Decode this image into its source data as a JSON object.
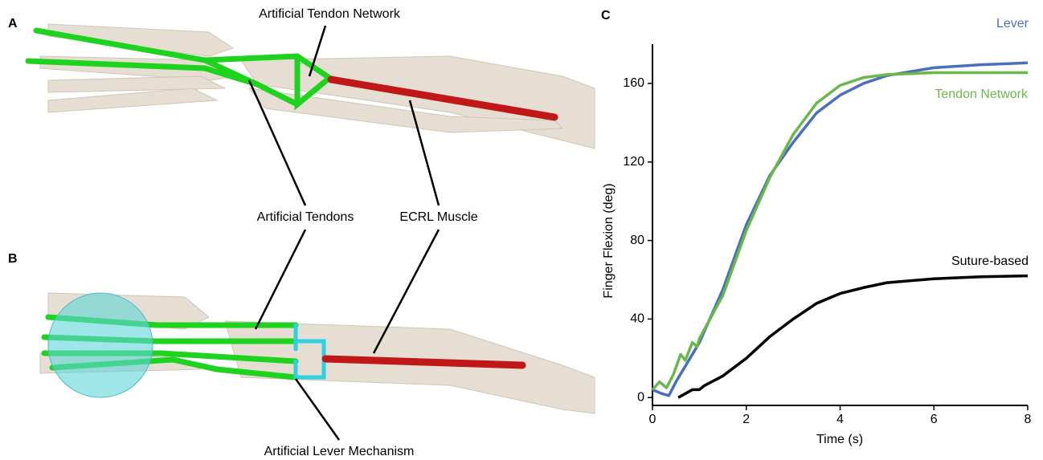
{
  "figure": {
    "panel_labels": [
      "A",
      "B",
      "C"
    ],
    "annotations": [
      "Artificial Tendon Network",
      "Artificial Tendons",
      "ECRL Muscle",
      "Artificial Lever Mechanism"
    ]
  },
  "chart_data": {
    "type": "line",
    "xlabel": "Time (s)",
    "ylabel": "Finger Flexion (deg)",
    "xlim": [
      0,
      8
    ],
    "xticks": [
      0,
      2,
      4,
      6,
      8
    ],
    "ylim": [
      -4,
      180
    ],
    "yticks": [
      0,
      40,
      80,
      120,
      160
    ],
    "series": [
      {
        "name": "Lever",
        "color": "#4a6fbd",
        "x": [
          0,
          0.2,
          0.35,
          0.5,
          0.8,
          1,
          1.5,
          2,
          2.5,
          3,
          3.5,
          4,
          4.5,
          5,
          6,
          7,
          8
        ],
        "values": [
          4,
          2,
          1,
          8,
          20,
          28,
          55,
          88,
          113,
          130,
          145,
          154,
          160,
          164,
          168,
          169.5,
          170.5
        ]
      },
      {
        "name": "Tendon Network",
        "color": "#6ab84a",
        "x": [
          0,
          0.15,
          0.3,
          0.45,
          0.6,
          0.7,
          0.85,
          0.95,
          1,
          1.5,
          2,
          2.5,
          3,
          3.5,
          4,
          4.5,
          5,
          6,
          8
        ],
        "values": [
          4,
          8,
          5,
          12,
          22,
          19,
          28,
          26,
          30,
          52,
          85,
          112,
          134,
          150,
          159,
          163,
          164.5,
          165.5,
          165.5
        ]
      },
      {
        "name": "Suture-based",
        "color": "#000000",
        "x": [
          0.55,
          0.7,
          0.85,
          1,
          1.1,
          1.5,
          2,
          2.5,
          3,
          3.5,
          4,
          4.5,
          5,
          6,
          7,
          8
        ],
        "values": [
          0,
          2,
          4,
          4,
          6,
          11,
          20,
          31,
          40,
          48,
          53,
          56,
          58.5,
          60.5,
          61.5,
          62
        ]
      }
    ]
  }
}
